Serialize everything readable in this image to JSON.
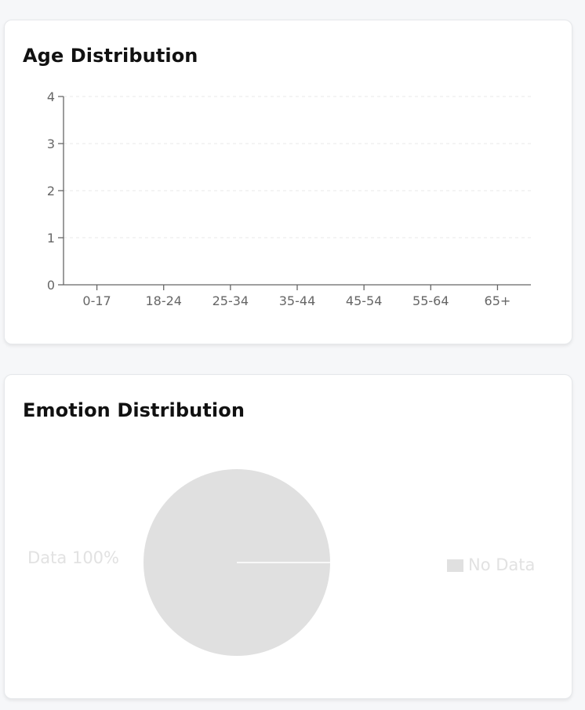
{
  "age_card": {
    "title": "Age Distribution"
  },
  "emotion_card": {
    "title": "Emotion Distribution"
  },
  "chart_data": [
    {
      "type": "bar",
      "title": "Age Distribution",
      "categories": [
        "0-17",
        "18-24",
        "25-34",
        "35-44",
        "45-54",
        "55-64",
        "65+"
      ],
      "values": [
        0,
        0,
        0,
        0,
        0,
        0,
        0
      ],
      "yticks": [
        0,
        1,
        2,
        3,
        4
      ],
      "ylim": [
        0,
        4
      ],
      "grid": true,
      "xlabel": "",
      "ylabel": ""
    },
    {
      "type": "pie",
      "title": "Emotion Distribution",
      "slices": [
        {
          "label": "No Data",
          "value": 100,
          "color": "#e0e0e0"
        }
      ],
      "slice_labels": [
        "Data 100%"
      ],
      "legend": {
        "position": "right",
        "entries": [
          "No Data"
        ]
      }
    }
  ]
}
